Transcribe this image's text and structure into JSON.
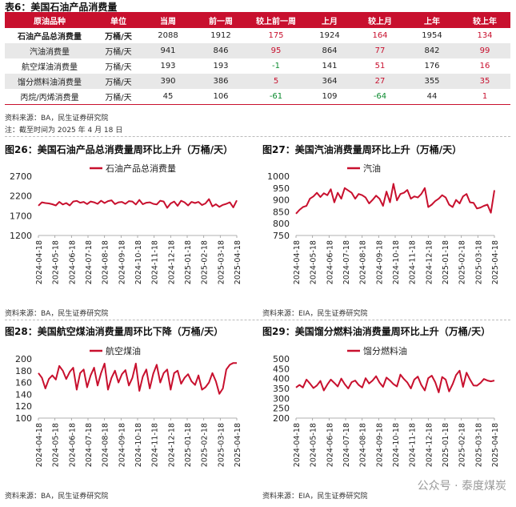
{
  "table": {
    "caption": "表6：美国石油产品消费量",
    "headers": [
      "原油品种",
      "单位",
      "当周",
      "前一周",
      "较上前一周",
      "上月",
      "较上月",
      "上年",
      "较上年"
    ],
    "rows": [
      {
        "name": "石油产品总消费量",
        "unit": "万桶/天",
        "cur": "2088",
        "prev": "1912",
        "d_prev": "175",
        "month": "1924",
        "d_month": "164",
        "year": "1954",
        "d_year": "134",
        "c_prev": "red",
        "c_month": "red",
        "c_year": "red"
      },
      {
        "name": "汽油消费量",
        "unit": "万桶/天",
        "cur": "941",
        "prev": "846",
        "d_prev": "95",
        "month": "864",
        "d_month": "77",
        "year": "842",
        "d_year": "99",
        "c_prev": "red",
        "c_month": "red",
        "c_year": "red"
      },
      {
        "name": "航空煤油消费量",
        "unit": "万桶/天",
        "cur": "193",
        "prev": "193",
        "d_prev": "-1",
        "month": "141",
        "d_month": "51",
        "year": "176",
        "d_year": "16",
        "c_prev": "green",
        "c_month": "red",
        "c_year": "red"
      },
      {
        "name": "馏分燃料油消费量",
        "unit": "万桶/天",
        "cur": "390",
        "prev": "386",
        "d_prev": "5",
        "month": "364",
        "d_month": "27",
        "year": "355",
        "d_year": "35",
        "c_prev": "red",
        "c_month": "red",
        "c_year": "red"
      },
      {
        "name": "丙烷/丙烯消费量",
        "unit": "万桶/天",
        "cur": "45",
        "prev": "106",
        "d_prev": "-61",
        "month": "109",
        "d_month": "-64",
        "year": "44",
        "d_year": "1",
        "c_prev": "green",
        "c_month": "green",
        "c_year": "red"
      }
    ],
    "source": "资料来源：BA，民生证券研究院",
    "note": "注：截至时间为 2025 年 4 月 18 日"
  },
  "colors": {
    "accent": "#c8102e",
    "up": "#c8102e",
    "down": "#0a8a2e",
    "alt_row": "#e8e8e8"
  },
  "watermark": "公众号 · 泰度煤炭",
  "chart_data": [
    {
      "type": "line",
      "caption": "图26：美国石油产品总消费量周环比上升（万桶/天）",
      "legend": "石油产品总消费量",
      "ylim": [
        1200,
        2700
      ],
      "yticks": [
        1200,
        1700,
        2200,
        2700
      ],
      "xticks": [
        "2024-04-18",
        "2024-05-18",
        "2024-06-18",
        "2024-07-18",
        "2024-08-18",
        "2024-09-18",
        "2024-10-18",
        "2024-11-18",
        "2024-12-18",
        "2025-01-18",
        "2025-02-18",
        "2025-03-18",
        "2025-04-18"
      ],
      "values": [
        1954,
        2040,
        2020,
        2010,
        1990,
        1960,
        2050,
        1985,
        2020,
        1960,
        2060,
        2075,
        2030,
        2050,
        1995,
        2060,
        2040,
        2000,
        2080,
        2020,
        2070,
        2090,
        1995,
        2040,
        2050,
        2000,
        2070,
        2060,
        1985,
        2100,
        1990,
        2030,
        2040,
        2000,
        1985,
        2080,
        2060,
        1900,
        2010,
        2060,
        1950,
        2080,
        2040,
        1960,
        2050,
        2020,
        2050,
        1970,
        2010,
        2120,
        1935,
        1990,
        1924,
        1975,
        2000,
        2040,
        1912,
        2088
      ],
      "source": "资料来源：BA，民生证券研究院"
    },
    {
      "type": "line",
      "caption": "图27：美国汽油消费量周环比上升（万桶/天）",
      "legend": "汽油",
      "ylim": [
        750,
        1000
      ],
      "yticks": [
        750,
        800,
        850,
        900,
        950,
        1000
      ],
      "xticks": [
        "2024-04-18",
        "2024-05-18",
        "2024-06-18",
        "2024-07-18",
        "2024-08-18",
        "2024-09-18",
        "2024-10-18",
        "2024-11-18",
        "2024-12-18",
        "2025-01-18",
        "2025-02-18",
        "2025-03-18",
        "2025-04-18"
      ],
      "values": [
        842,
        858,
        870,
        875,
        905,
        915,
        930,
        912,
        928,
        920,
        945,
        890,
        930,
        905,
        950,
        940,
        930,
        905,
        925,
        920,
        910,
        885,
        900,
        918,
        905,
        875,
        935,
        890,
        968,
        898,
        925,
        930,
        942,
        905,
        915,
        910,
        925,
        950,
        870,
        880,
        895,
        905,
        920,
        910,
        880,
        870,
        900,
        885,
        915,
        925,
        890,
        888,
        864,
        868,
        875,
        880,
        846,
        941
      ],
      "source": "资料来源：EIA，民生证券研究院"
    },
    {
      "type": "line",
      "caption": "图28：美国航空煤油消费量周环比下降（万桶/天）",
      "legend": "航空煤油",
      "ylim": [
        100,
        200
      ],
      "yticks": [
        100,
        120,
        140,
        160,
        180,
        200
      ],
      "xticks": [
        "2024-04-18",
        "2024-05-18",
        "2024-06-18",
        "2024-07-18",
        "2024-08-18",
        "2024-09-18",
        "2024-10-18",
        "2024-11-18",
        "2024-12-18",
        "2025-01-18",
        "2025-02-18",
        "2025-03-18",
        "2025-04-18"
      ],
      "values": [
        176,
        168,
        150,
        166,
        172,
        165,
        188,
        180,
        166,
        178,
        185,
        148,
        176,
        182,
        152,
        172,
        185,
        155,
        176,
        192,
        148,
        168,
        180,
        160,
        174,
        181,
        155,
        168,
        192,
        146,
        170,
        182,
        150,
        175,
        190,
        160,
        176,
        182,
        148,
        176,
        180,
        158,
        168,
        174,
        162,
        156,
        172,
        148,
        152,
        160,
        176,
        162,
        141,
        150,
        182,
        190,
        193,
        193
      ],
      "source": "资料来源：BA，民生证券研究院"
    },
    {
      "type": "line",
      "caption": "图29：美国馏分燃料油消费量周环比上升（万桶/天）",
      "legend": "馏分燃料油",
      "ylim": [
        200,
        500
      ],
      "yticks": [
        200,
        250,
        300,
        350,
        400,
        450,
        500
      ],
      "xticks": [
        "2024-04-18",
        "2024-05-18",
        "2024-06-18",
        "2024-07-18",
        "2024-08-18",
        "2024-09-18",
        "2024-10-18",
        "2024-11-18",
        "2024-12-18",
        "2025-01-18",
        "2025-02-18",
        "2025-03-18",
        "2025-04-18"
      ],
      "values": [
        355,
        368,
        355,
        395,
        375,
        352,
        365,
        388,
        340,
        370,
        395,
        378,
        360,
        400,
        372,
        350,
        382,
        390,
        368,
        355,
        402,
        375,
        390,
        412,
        380,
        358,
        405,
        390,
        372,
        360,
        420,
        398,
        380,
        350,
        395,
        410,
        368,
        340,
        402,
        415,
        382,
        330,
        408,
        395,
        335,
        372,
        418,
        440,
        358,
        430,
        395,
        365,
        364,
        378,
        398,
        390,
        386,
        390
      ],
      "source": "资料来源：EIA，民生证券研究院"
    }
  ]
}
